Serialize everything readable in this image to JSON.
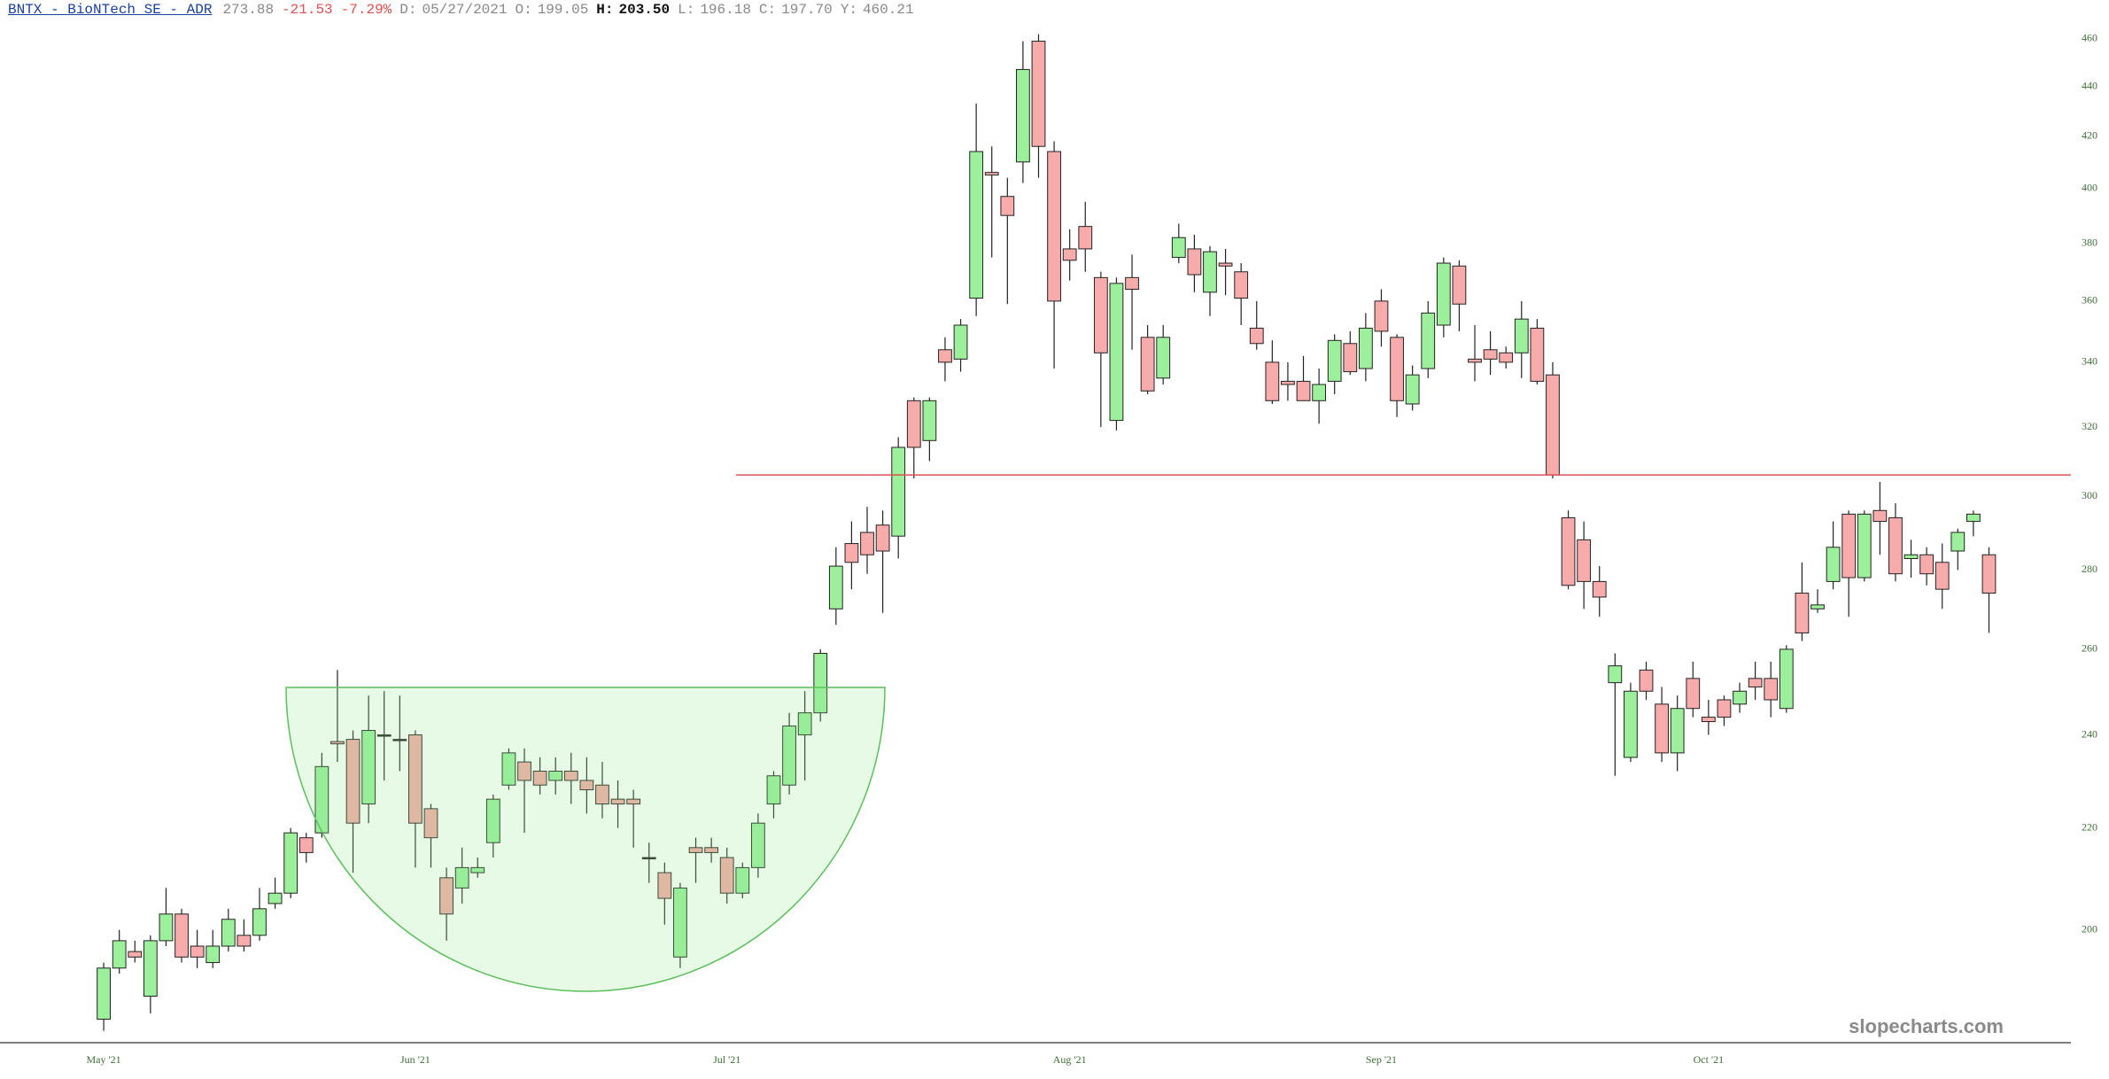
{
  "header": {
    "symbol": "BNTX - BioNTech SE - ADR",
    "last": "273.88",
    "change": "-21.53",
    "change_pct": "-7.29%",
    "fields": [
      {
        "label": "D:",
        "value": "05/27/2021"
      },
      {
        "label": "O:",
        "value": "199.05"
      },
      {
        "label": "H:",
        "value": "203.50"
      },
      {
        "label": "L:",
        "value": "196.18"
      },
      {
        "label": "C:",
        "value": "197.70"
      },
      {
        "label": "Y:",
        "value": "460.21"
      }
    ]
  },
  "watermark": "slopecharts.com",
  "chart_data": {
    "type": "candlestick",
    "log_scale": true,
    "up_color": "#9cf09c",
    "down_color": "#f7abab",
    "ylim": [
      180,
      477
    ],
    "yticks": [
      200,
      220,
      240,
      260,
      280,
      300,
      320,
      340,
      360,
      380,
      400,
      420,
      440,
      460
    ],
    "hline": {
      "value": 306,
      "color": "#d9534f"
    },
    "categories": [
      "May '21",
      null,
      null,
      null,
      null,
      null,
      null,
      null,
      null,
      null,
      null,
      null,
      null,
      null,
      null,
      null,
      null,
      null,
      null,
      null,
      "Jun '21",
      null,
      null,
      null,
      null,
      null,
      null,
      null,
      null,
      null,
      null,
      null,
      null,
      null,
      null,
      null,
      null,
      null,
      null,
      null,
      "Jul '21",
      null,
      null,
      null,
      null,
      null,
      null,
      null,
      null,
      null,
      null,
      null,
      null,
      null,
      null,
      null,
      null,
      null,
      null,
      null,
      null,
      null,
      "Aug '21",
      null,
      null,
      null,
      null,
      null,
      null,
      null,
      null,
      null,
      null,
      null,
      null,
      null,
      null,
      null,
      null,
      null,
      null,
      null,
      "Sep '21",
      null,
      null,
      null,
      null,
      null,
      null,
      null,
      null,
      null,
      null,
      null,
      null,
      null,
      null,
      null,
      null,
      null,
      null,
      null,
      null,
      "Oct '21",
      null,
      null,
      null,
      null,
      null,
      null,
      null,
      null,
      null,
      null,
      null,
      null,
      null,
      null,
      null,
      null,
      null,
      null
    ],
    "open": [
      184,
      193,
      196,
      188,
      198,
      203,
      197,
      194,
      197,
      199,
      199,
      205,
      207,
      218,
      219,
      238.5,
      239,
      225,
      240,
      239,
      240,
      224,
      210,
      208,
      211,
      217,
      229,
      234,
      232,
      230,
      232,
      230,
      229,
      226,
      226,
      214,
      211,
      195,
      216,
      216,
      214,
      207,
      212,
      225,
      229,
      240,
      245,
      270,
      287,
      290,
      292,
      289,
      328,
      316,
      344,
      341,
      361,
      406,
      397,
      410,
      459,
      414,
      378,
      386,
      368,
      322,
      368,
      348,
      335,
      375,
      378,
      363,
      373,
      370,
      351,
      340,
      334,
      334,
      328,
      334,
      346,
      338,
      360,
      348,
      327,
      338,
      352,
      372,
      341,
      344,
      343,
      343,
      351,
      336,
      294,
      288,
      277,
      252,
      235,
      255,
      247,
      236,
      253,
      244,
      248,
      247,
      253,
      253,
      246,
      274,
      270,
      277,
      295,
      278,
      296,
      294,
      283,
      284,
      282,
      285,
      293,
      284
    ],
    "high": [
      194,
      200,
      198,
      199,
      208,
      204,
      200,
      200,
      204,
      202,
      208,
      210,
      220,
      219,
      236,
      255,
      241,
      249,
      250,
      249,
      241,
      225,
      212,
      216,
      214,
      227,
      237,
      237,
      235,
      235,
      236,
      235,
      234,
      230,
      228,
      217,
      213,
      209,
      218,
      218,
      216,
      213,
      223,
      232,
      245,
      250,
      260,
      286,
      293,
      297,
      296,
      317,
      329,
      329,
      348,
      354,
      433,
      416,
      404,
      459,
      462,
      418,
      385,
      395,
      370,
      368,
      376,
      352,
      352,
      387,
      383,
      379,
      378,
      373,
      360,
      347,
      340,
      342,
      338,
      349,
      350,
      356,
      364,
      349,
      339,
      360,
      375,
      374,
      352,
      350,
      345,
      360,
      354,
      340,
      296,
      293,
      281,
      259,
      252,
      257,
      251,
      249,
      257,
      248,
      249,
      252,
      257,
      257,
      261,
      282,
      275,
      293,
      296,
      296,
      304,
      298,
      288,
      286,
      287,
      291,
      296,
      286
    ],
    "low": [
      182,
      192,
      194,
      185,
      197,
      194,
      193,
      193,
      196,
      196,
      198,
      204,
      206,
      213,
      218,
      234,
      211,
      221,
      230,
      232,
      212,
      212,
      198,
      205,
      210,
      214,
      228,
      219,
      227,
      227,
      225,
      223,
      222,
      220,
      216,
      209,
      201,
      193,
      209,
      213,
      205,
      206,
      210,
      222,
      227,
      230,
      243,
      266,
      275,
      279,
      269,
      283,
      305,
      310,
      334,
      337,
      355,
      375,
      359,
      402,
      404,
      338,
      367,
      370,
      320,
      319,
      344,
      330,
      333,
      373,
      363,
      355,
      362,
      352,
      344,
      327,
      328,
      328,
      321,
      330,
      336,
      334,
      345,
      323,
      325,
      335,
      348,
      350,
      334,
      336,
      338,
      335,
      333,
      305,
      275,
      270,
      268,
      231,
      234,
      248,
      234,
      232,
      244,
      240,
      242,
      245,
      248,
      244,
      245,
      262,
      269,
      275,
      268,
      277,
      284,
      277,
      278,
      276,
      270,
      280,
      289,
      264
    ],
    "close": [
      193,
      198,
      195,
      198,
      203,
      195,
      195,
      197,
      202,
      197,
      204,
      207,
      219,
      215,
      233,
      238,
      221,
      241,
      240,
      239,
      221,
      218,
      203,
      212,
      212,
      226,
      236,
      230,
      229,
      232,
      230,
      228,
      225,
      225,
      225,
      214,
      206,
      208,
      215,
      215,
      207,
      212,
      221,
      231,
      242,
      245,
      259,
      281,
      282,
      284,
      285,
      314,
      314,
      328,
      340,
      352,
      414,
      405,
      390,
      447,
      416,
      360,
      374,
      378,
      343,
      366,
      364,
      331,
      348,
      382,
      369,
      377,
      372,
      361,
      346,
      328,
      333,
      328,
      333,
      347,
      337,
      351,
      350,
      328,
      336,
      356,
      373,
      359,
      340,
      341,
      340,
      354,
      334,
      306,
      276,
      277,
      273,
      256,
      250,
      250,
      236,
      246,
      246,
      243,
      244,
      250,
      251,
      248,
      260,
      264,
      271,
      286,
      278,
      295,
      293,
      279,
      284,
      279,
      275,
      290,
      295,
      274
    ]
  }
}
